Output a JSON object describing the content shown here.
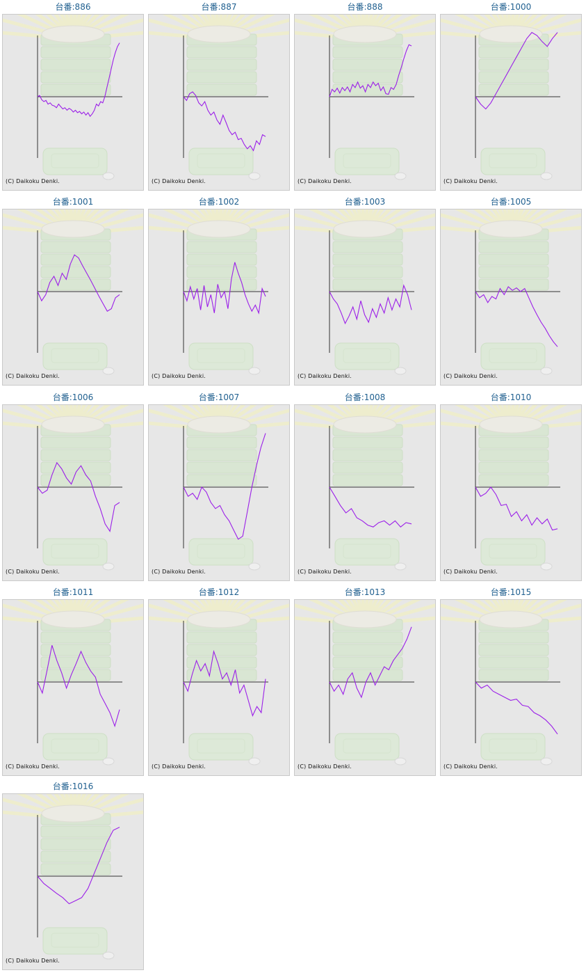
{
  "page": {
    "copyright": "(C) Daikoku Denki."
  },
  "style": {
    "line_color": "#9b1fe8",
    "axis_color": "#333333",
    "title_color": "#1f5f8f",
    "background": "#e7e7e7"
  },
  "chart_data": [
    {
      "type": "line",
      "title": "台番:886",
      "ylim": [
        -1,
        1
      ],
      "values": [
        0.0,
        0.02,
        -0.05,
        -0.08,
        -0.06,
        -0.12,
        -0.1,
        -0.14,
        -0.15,
        -0.18,
        -0.12,
        -0.16,
        -0.2,
        -0.18,
        -0.22,
        -0.19,
        -0.21,
        -0.25,
        -0.22,
        -0.26,
        -0.24,
        -0.28,
        -0.25,
        -0.3,
        -0.26,
        -0.32,
        -0.28,
        -0.22,
        -0.12,
        -0.15,
        -0.08,
        -0.1,
        0.0,
        0.15,
        0.3,
        0.45,
        0.6,
        0.72,
        0.82,
        0.88
      ]
    },
    {
      "type": "line",
      "title": "台番:887",
      "ylim": [
        -1,
        1
      ],
      "values": [
        0.0,
        -0.06,
        0.05,
        0.08,
        0.02,
        -0.1,
        -0.15,
        -0.08,
        -0.22,
        -0.3,
        -0.25,
        -0.38,
        -0.45,
        -0.3,
        -0.42,
        -0.55,
        -0.62,
        -0.58,
        -0.7,
        -0.68,
        -0.78,
        -0.85,
        -0.8,
        -0.88,
        -0.72,
        -0.78,
        -0.62,
        -0.65
      ]
    },
    {
      "type": "line",
      "title": "台番:888",
      "ylim": [
        -1,
        1
      ],
      "values": [
        0.0,
        0.12,
        0.08,
        0.14,
        0.06,
        0.15,
        0.1,
        0.16,
        0.08,
        0.2,
        0.15,
        0.24,
        0.14,
        0.18,
        0.08,
        0.2,
        0.15,
        0.24,
        0.18,
        0.22,
        0.1,
        0.16,
        0.05,
        0.04,
        0.15,
        0.12,
        0.2,
        0.35,
        0.48,
        0.62,
        0.75,
        0.85,
        0.83
      ]
    },
    {
      "type": "line",
      "title": "台番:1000",
      "ylim": [
        -1,
        1
      ],
      "values": [
        0.0,
        -0.12,
        -0.2,
        -0.1,
        0.05,
        0.2,
        0.35,
        0.5,
        0.65,
        0.8,
        0.95,
        1.05,
        1.0,
        0.9,
        0.82,
        0.95,
        1.05
      ]
    },
    {
      "type": "line",
      "title": "台番:1001",
      "ylim": [
        -1,
        1
      ],
      "values": [
        0.0,
        -0.15,
        -0.05,
        0.15,
        0.25,
        0.1,
        0.3,
        0.2,
        0.45,
        0.6,
        0.55,
        0.42,
        0.3,
        0.18,
        0.05,
        -0.08,
        -0.2,
        -0.32,
        -0.28,
        -0.1,
        -0.05
      ]
    },
    {
      "type": "line",
      "title": "台番:1002",
      "ylim": [
        -1,
        1
      ],
      "values": [
        0.0,
        -0.15,
        0.08,
        -0.12,
        0.05,
        -0.3,
        0.1,
        -0.25,
        -0.05,
        -0.35,
        0.12,
        -0.1,
        0.0,
        -0.28,
        0.2,
        0.48,
        0.3,
        0.15,
        -0.05,
        -0.2,
        -0.32,
        -0.22,
        -0.35,
        0.05,
        -0.08
      ]
    },
    {
      "type": "line",
      "title": "台番:1003",
      "ylim": [
        -1,
        1
      ],
      "values": [
        0.0,
        -0.12,
        -0.2,
        -0.35,
        -0.52,
        -0.4,
        -0.25,
        -0.45,
        -0.15,
        -0.38,
        -0.5,
        -0.28,
        -0.42,
        -0.2,
        -0.35,
        -0.1,
        -0.3,
        -0.12,
        -0.25,
        0.1,
        -0.05,
        -0.3
      ]
    },
    {
      "type": "line",
      "title": "台番:1005",
      "ylim": [
        -1,
        1
      ],
      "values": [
        0.0,
        -0.1,
        -0.05,
        -0.18,
        -0.08,
        -0.12,
        0.05,
        -0.05,
        0.08,
        0.02,
        0.06,
        0.0,
        0.05,
        -0.1,
        -0.25,
        -0.38,
        -0.5,
        -0.6,
        -0.72,
        -0.82,
        -0.9
      ]
    },
    {
      "type": "line",
      "title": "台番:1006",
      "ylim": [
        -1,
        1
      ],
      "values": [
        0.0,
        -0.1,
        -0.05,
        0.2,
        0.4,
        0.3,
        0.15,
        0.05,
        0.25,
        0.35,
        0.2,
        0.1,
        -0.15,
        -0.35,
        -0.6,
        -0.72,
        -0.3,
        -0.25
      ]
    },
    {
      "type": "line",
      "title": "台番:1007",
      "ylim": [
        -1,
        1
      ],
      "values": [
        0.0,
        -0.15,
        -0.1,
        -0.2,
        0.0,
        -0.08,
        -0.25,
        -0.35,
        -0.3,
        -0.45,
        -0.55,
        -0.7,
        -0.85,
        -0.8,
        -0.4,
        0.0,
        0.35,
        0.65,
        0.88
      ]
    },
    {
      "type": "line",
      "title": "台番:1008",
      "ylim": [
        -1,
        1
      ],
      "values": [
        0.0,
        -0.15,
        -0.3,
        -0.42,
        -0.35,
        -0.5,
        -0.55,
        -0.62,
        -0.65,
        -0.58,
        -0.55,
        -0.62,
        -0.55,
        -0.65,
        -0.58,
        -0.6
      ]
    },
    {
      "type": "line",
      "title": "台番:1010",
      "ylim": [
        -1,
        1
      ],
      "values": [
        0.0,
        -0.15,
        -0.1,
        0.0,
        -0.12,
        -0.3,
        -0.28,
        -0.48,
        -0.4,
        -0.55,
        -0.45,
        -0.62,
        -0.5,
        -0.6,
        -0.52,
        -0.7,
        -0.68
      ]
    },
    {
      "type": "line",
      "title": "台番:1011",
      "ylim": [
        -1,
        1
      ],
      "values": [
        0.0,
        -0.18,
        0.2,
        0.6,
        0.35,
        0.15,
        -0.1,
        0.12,
        0.3,
        0.5,
        0.32,
        0.18,
        0.08,
        -0.2,
        -0.35,
        -0.5,
        -0.72,
        -0.45
      ]
    },
    {
      "type": "line",
      "title": "台番:1012",
      "ylim": [
        -1,
        1
      ],
      "values": [
        0.0,
        -0.15,
        0.12,
        0.35,
        0.18,
        0.3,
        0.1,
        0.5,
        0.3,
        0.05,
        0.15,
        -0.05,
        0.2,
        -0.18,
        -0.05,
        -0.3,
        -0.55,
        -0.4,
        -0.5,
        0.05
      ]
    },
    {
      "type": "line",
      "title": "台番:1013",
      "ylim": [
        -1,
        1
      ],
      "values": [
        0.0,
        -0.15,
        -0.05,
        -0.2,
        0.05,
        0.15,
        -0.1,
        -0.25,
        0.0,
        0.15,
        -0.05,
        0.1,
        0.25,
        0.2,
        0.35,
        0.45,
        0.55,
        0.7,
        0.9
      ]
    },
    {
      "type": "line",
      "title": "台番:1015",
      "ylim": [
        -1,
        1
      ],
      "values": [
        0.0,
        -0.1,
        -0.05,
        -0.15,
        -0.2,
        -0.25,
        -0.3,
        -0.28,
        -0.38,
        -0.4,
        -0.5,
        -0.55,
        -0.62,
        -0.72,
        -0.85
      ]
    },
    {
      "type": "line",
      "title": "台番:1016",
      "ylim": [
        -1,
        1
      ],
      "values": [
        0.0,
        -0.12,
        -0.2,
        -0.28,
        -0.35,
        -0.45,
        -0.4,
        -0.35,
        -0.2,
        0.05,
        0.3,
        0.55,
        0.75,
        0.8
      ]
    }
  ]
}
